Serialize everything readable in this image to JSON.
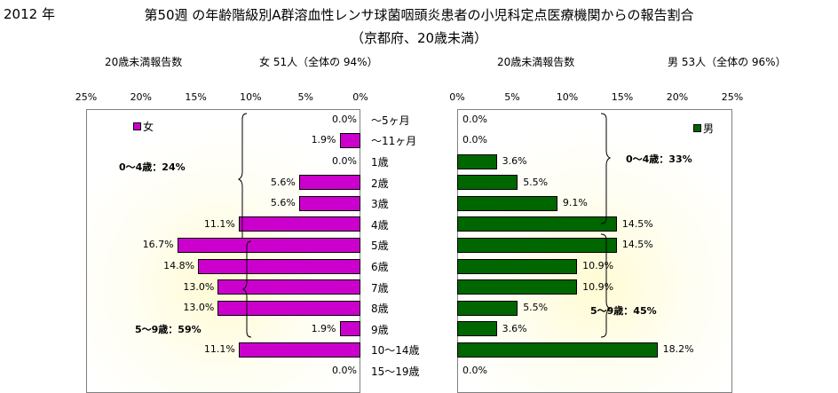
{
  "header": {
    "year": "2012 年",
    "title": "第50週 の年齢階級別A群溶血性レンサ球菌咽頭炎患者の小児科定点医療機関からの報告割合",
    "subtitle": "（京都府、20歳未満）"
  },
  "left_header": {
    "label": "20歳未満報告数",
    "summary": "女 51人（全体の 94%）"
  },
  "right_header": {
    "label": "20歳未満報告数",
    "summary": "男 53人（全体の 96%）"
  },
  "left_ticks": [
    "25%",
    "20%",
    "15%",
    "10%",
    "5%",
    "0%"
  ],
  "right_ticks": [
    "0%",
    "5%",
    "10%",
    "15%",
    "20%",
    "25%"
  ],
  "annotations": {
    "female_0_4": "0～4歳：24%",
    "female_5_9": "5～9歳：59%",
    "male_0_4": "0～4歳：33%",
    "male_5_9": "5～9歳：45%"
  },
  "colors": {
    "female": "#cc00cc",
    "male": "#006600"
  },
  "chart_data": {
    "type": "bar",
    "orientation": "horizontal",
    "title": "第50週 の年齢階級別A群溶血性レンサ球菌咽頭炎患者の小児科定点医療機関からの報告割合",
    "categories": [
      "～5ヶ月",
      "～11ヶ月",
      "1歳",
      "2歳",
      "3歳",
      "4歳",
      "5歳",
      "6歳",
      "7歳",
      "8歳",
      "9歳",
      "10～14歳",
      "15～19歳"
    ],
    "xlim": [
      0,
      25
    ],
    "series": [
      {
        "name": "女",
        "values": [
          0.0,
          1.9,
          0.0,
          5.6,
          5.6,
          11.1,
          16.7,
          14.8,
          13.0,
          13.0,
          1.9,
          11.1,
          0.0
        ],
        "labels": [
          "0.0%",
          "1.9%",
          "0.0%",
          "5.6%",
          "5.6%",
          "11.1%",
          "16.7%",
          "14.8%",
          "13.0%",
          "13.0%",
          "1.9%",
          "11.1%",
          "0.0%"
        ]
      },
      {
        "name": "男",
        "values": [
          0.0,
          0.0,
          3.6,
          5.5,
          9.1,
          14.5,
          14.5,
          10.9,
          10.9,
          5.5,
          3.6,
          18.2,
          0.0
        ],
        "labels": [
          "0.0%",
          "0.0%",
          "3.6%",
          "5.5%",
          "9.1%",
          "14.5%",
          "14.5%",
          "10.9%",
          "10.9%",
          "5.5%",
          "3.6%",
          "18.2%",
          "0.0%"
        ]
      }
    ],
    "legend": "top-left / top-right",
    "grid": false
  }
}
